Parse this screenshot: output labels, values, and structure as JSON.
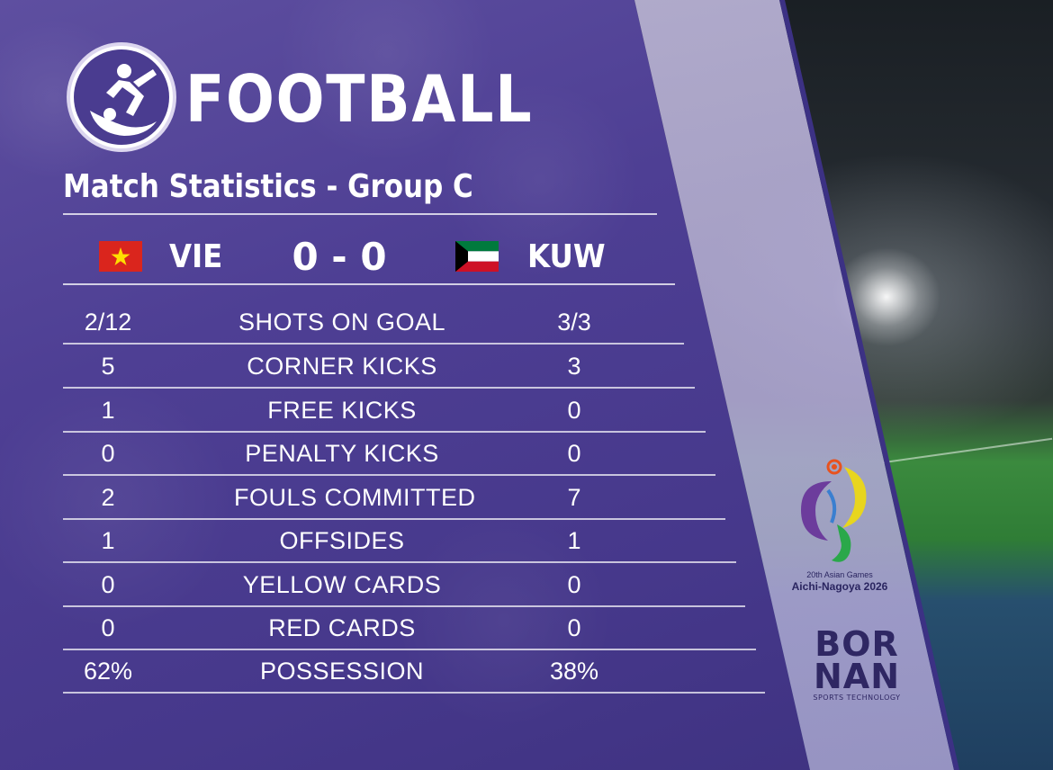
{
  "header": {
    "sport_title": "FOOTBALL",
    "subtitle": "Match Statistics - Group C"
  },
  "match": {
    "home": {
      "code": "VIE",
      "flag_colors": {
        "field": "#da251d",
        "star": "#ffde00"
      }
    },
    "away": {
      "code": "KUW",
      "flag_colors": {
        "green": "#007a3d",
        "white": "#ffffff",
        "red": "#ce1126",
        "black": "#000000"
      }
    },
    "score": "0 - 0"
  },
  "stats": [
    {
      "home": "2/12",
      "label": "SHOTS ON GOAL",
      "away": "3/3"
    },
    {
      "home": "5",
      "label": "CORNER KICKS",
      "away": "3"
    },
    {
      "home": "1",
      "label": "FREE KICKS",
      "away": "0"
    },
    {
      "home": "0",
      "label": "PENALTY KICKS",
      "away": "0"
    },
    {
      "home": "2",
      "label": "FOULS COMMITTED",
      "away": "7"
    },
    {
      "home": "1",
      "label": "OFFSIDES",
      "away": "1"
    },
    {
      "home": "0",
      "label": "YELLOW CARDS",
      "away": "0"
    },
    {
      "home": "0",
      "label": "RED CARDS",
      "away": "0"
    },
    {
      "home": "62%",
      "label": "POSSESSION",
      "away": "38%"
    }
  ],
  "sponsors": {
    "games_line1": "20th Asian Games",
    "games_line2": "Aichi-Nagoya 2026",
    "bornan_line1": "BOR",
    "bornan_line2": "NAN",
    "bornan_tagline": "SPORTS TECHNOLOGY"
  },
  "colors": {
    "panel": "#4e3f94",
    "stripe": "#b3abd7",
    "text": "#ffffff"
  }
}
